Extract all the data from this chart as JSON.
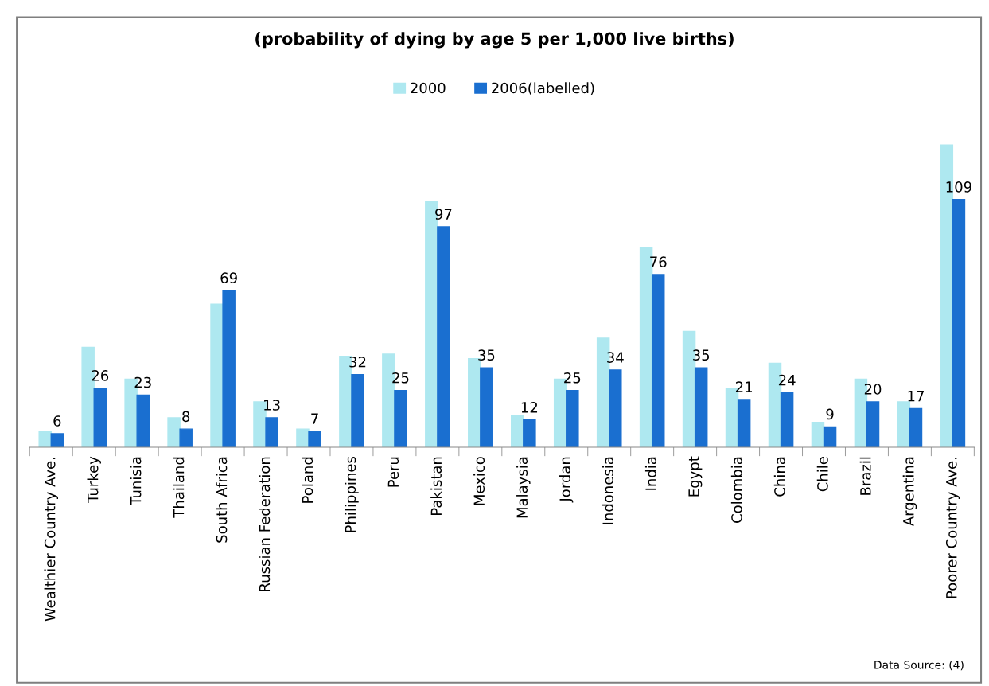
{
  "chart_data": {
    "type": "bar",
    "title": "(probability of dying by age 5 per 1,000 live births)",
    "categories": [
      "Wealthier Country Ave.",
      "Turkey",
      "Tunisia",
      "Thailand",
      "South Africa",
      "Russian Federation",
      "Poland",
      "Philippines",
      "Peru",
      "Pakistan",
      "Mexico",
      "Malaysia",
      "Jordan",
      "Indonesia",
      "India",
      "Egypt",
      "Colombia",
      "China",
      "Chile",
      "Brazil",
      "Argentina",
      "Poorer Country Ave."
    ],
    "series": [
      {
        "name": "2000",
        "color": "#aee8f0",
        "values": [
          7,
          44,
          30,
          13,
          63,
          20,
          8,
          40,
          41,
          108,
          39,
          14,
          30,
          48,
          88,
          51,
          26,
          37,
          11,
          30,
          20,
          133
        ]
      },
      {
        "name": "2006(labelled)",
        "color": "#1a6fd0",
        "values": [
          6,
          26,
          23,
          8,
          69,
          13,
          7,
          32,
          25,
          97,
          35,
          12,
          25,
          34,
          76,
          35,
          21,
          24,
          9,
          20,
          17,
          109
        ],
        "value_labels": [
          "6",
          "26",
          "23",
          "8",
          "69",
          "13",
          "7",
          "32",
          "25",
          "97",
          "35",
          "12",
          "25",
          "34",
          "76",
          "35",
          "21",
          "24",
          "9",
          "20",
          "17",
          "109"
        ]
      }
    ],
    "legend": "top",
    "annotations": [
      "Data Source: (4)"
    ]
  }
}
